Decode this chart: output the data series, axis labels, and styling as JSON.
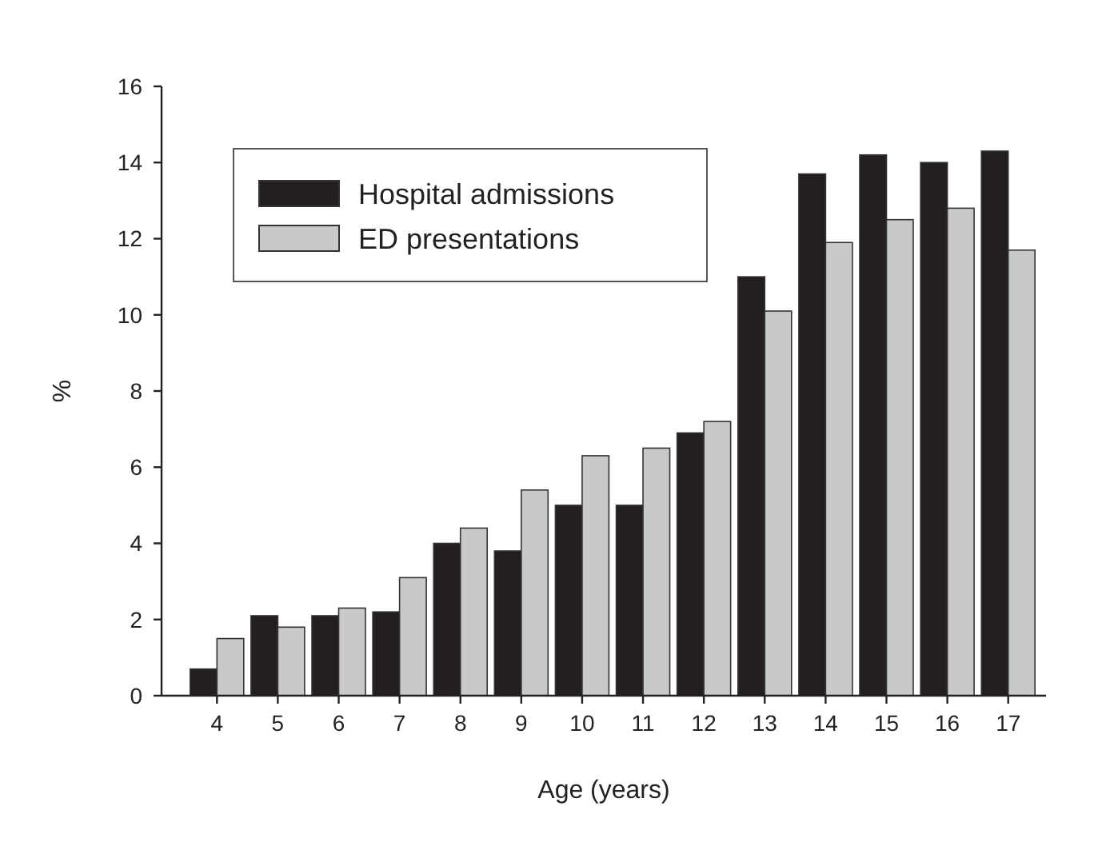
{
  "chart_data": {
    "type": "bar",
    "xlabel": "Age (years)",
    "ylabel": "%",
    "categories": [
      "4",
      "5",
      "6",
      "7",
      "8",
      "9",
      "10",
      "11",
      "12",
      "13",
      "14",
      "15",
      "16",
      "17"
    ],
    "series": [
      {
        "name": "Hospital admissions",
        "color": "#231f20",
        "values": [
          0.7,
          2.1,
          2.1,
          2.2,
          4.0,
          3.8,
          5.0,
          5.0,
          6.9,
          11.0,
          13.7,
          14.2,
          14.0,
          14.3
        ]
      },
      {
        "name": "ED presentations",
        "color": "#c8c9cb",
        "values": [
          1.5,
          1.8,
          2.3,
          3.1,
          4.4,
          5.4,
          6.3,
          6.5,
          7.2,
          10.1,
          11.9,
          12.5,
          12.8,
          11.7
        ]
      }
    ],
    "ylim": [
      0,
      16
    ],
    "yticks": [
      0,
      2,
      4,
      6,
      8,
      10,
      12,
      14,
      16
    ],
    "legend": "top left"
  }
}
